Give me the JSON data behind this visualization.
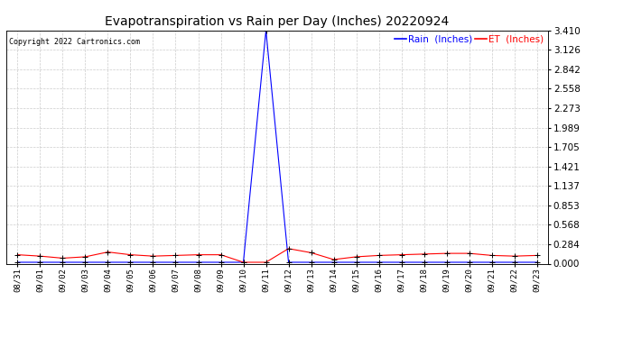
{
  "title": "Evapotranspiration vs Rain per Day (Inches) 20220924",
  "copyright": "Copyright 2022 Cartronics.com",
  "legend_rain": "Rain  (Inches)",
  "legend_et": "ET  (Inches)",
  "legend_rain_color": "blue",
  "legend_et_color": "red",
  "background_color": "#ffffff",
  "grid_color": "#cccccc",
  "dates": [
    "08/31",
    "09/01",
    "09/02",
    "09/03",
    "09/04",
    "09/05",
    "09/06",
    "09/07",
    "09/08",
    "09/09",
    "09/10",
    "09/11",
    "09/12",
    "09/13",
    "09/14",
    "09/15",
    "09/16",
    "09/17",
    "09/18",
    "09/19",
    "09/20",
    "09/21",
    "09/22",
    "09/23"
  ],
  "rain_values": [
    0.02,
    0.02,
    0.02,
    0.02,
    0.02,
    0.02,
    0.02,
    0.02,
    0.02,
    0.02,
    0.02,
    3.41,
    0.02,
    0.02,
    0.02,
    0.02,
    0.02,
    0.02,
    0.02,
    0.02,
    0.02,
    0.02,
    0.02,
    0.02
  ],
  "et_values": [
    0.13,
    0.11,
    0.08,
    0.1,
    0.17,
    0.13,
    0.11,
    0.12,
    0.13,
    0.13,
    0.02,
    0.02,
    0.22,
    0.16,
    0.06,
    0.1,
    0.12,
    0.13,
    0.14,
    0.15,
    0.15,
    0.12,
    0.11,
    0.12
  ],
  "ylim": [
    0.0,
    3.41
  ],
  "yticks": [
    0.0,
    0.284,
    0.568,
    0.853,
    1.137,
    1.421,
    1.705,
    1.989,
    2.273,
    2.558,
    2.842,
    3.126,
    3.41
  ]
}
